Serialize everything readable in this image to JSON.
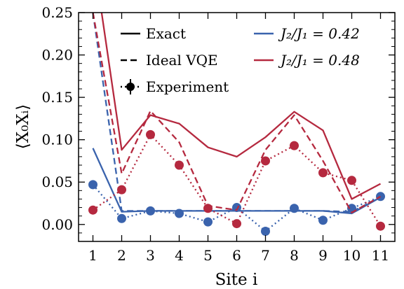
{
  "chart_data": {
    "type": "line",
    "xlabel": "Site i",
    "ylabel": "⟨X₀Xᵢ⟩",
    "xlim": [
      0.5,
      11.5
    ],
    "ylim": [
      -0.02,
      0.25
    ],
    "x_ticks": [
      1,
      2,
      3,
      4,
      5,
      6,
      7,
      8,
      9,
      10,
      11
    ],
    "y_ticks": [
      0.0,
      0.05,
      0.1,
      0.15,
      0.2,
      0.25
    ],
    "y_tick_labels": [
      "0.00",
      "0.05",
      "0.10",
      "0.15",
      "0.20",
      "0.25"
    ],
    "grid": false,
    "legend": {
      "styles": [
        {
          "label": "Exact",
          "style": "solid"
        },
        {
          "label": "Ideal VQE",
          "style": "dashed"
        },
        {
          "label": "Experiment",
          "style": "dotted-marker"
        }
      ],
      "colors": [
        {
          "label": "J₂/J₁ = 0.42",
          "color": "#3a63ad"
        },
        {
          "label": "J₂/J₁ = 0.48",
          "color": "#b5293f"
        }
      ]
    },
    "x": [
      1,
      2,
      3,
      4,
      5,
      6,
      7,
      8,
      9,
      10,
      11
    ],
    "series": [
      {
        "name": "J₂/J₁ = 0.42",
        "kind": "Exact",
        "color": "#3a63ad",
        "style": "solid",
        "values": [
          0.09,
          0.015,
          0.016,
          0.016,
          0.016,
          0.016,
          0.016,
          0.016,
          0.016,
          0.013,
          0.032
        ]
      },
      {
        "name": "J₂/J₁ = 0.42",
        "kind": "Ideal VQE",
        "color": "#3a63ad",
        "style": "dashed",
        "values": [
          0.25,
          0.016,
          0.016,
          0.016,
          0.016,
          0.016,
          0.016,
          0.016,
          0.016,
          0.015,
          0.032
        ]
      },
      {
        "name": "J₂/J₁ = 0.42",
        "kind": "Experiment",
        "color": "#3a63ad",
        "style": "dotted",
        "values": [
          0.047,
          0.007,
          0.016,
          0.013,
          0.003,
          0.02,
          -0.008,
          0.019,
          0.005,
          0.019,
          0.033
        ]
      },
      {
        "name": "J₂/J₁ = 0.48",
        "kind": "Exact",
        "color": "#b5293f",
        "style": "solid",
        "values": [
          0.32,
          0.088,
          0.129,
          0.119,
          0.091,
          0.08,
          0.103,
          0.133,
          0.111,
          0.03,
          0.048
        ]
      },
      {
        "name": "J₂/J₁ = 0.48",
        "kind": "Ideal VQE",
        "color": "#b5293f",
        "style": "dashed",
        "values": [
          0.25,
          0.06,
          0.134,
          0.097,
          0.022,
          0.017,
          0.088,
          0.129,
          0.075,
          0.014,
          0.033
        ]
      },
      {
        "name": "J₂/J₁ = 0.48",
        "kind": "Experiment",
        "color": "#b5293f",
        "style": "dotted",
        "values": [
          0.017,
          0.041,
          0.106,
          0.07,
          0.019,
          0.001,
          0.075,
          0.093,
          0.061,
          0.052,
          -0.002
        ]
      }
    ]
  }
}
